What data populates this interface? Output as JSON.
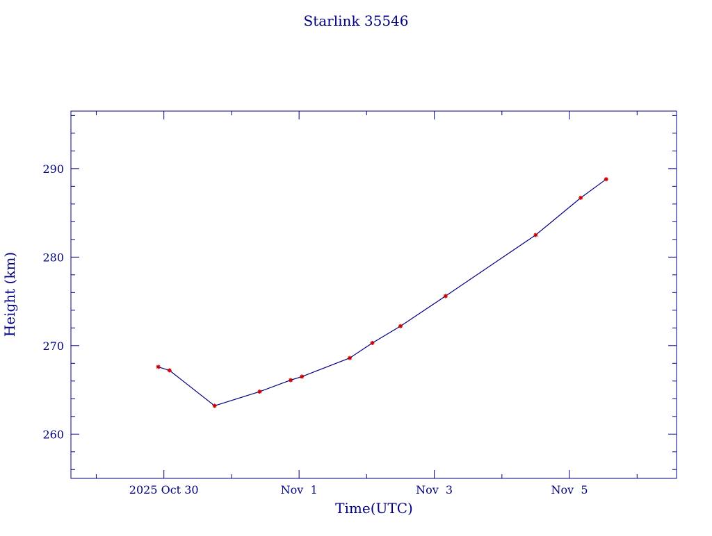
{
  "chart_data": {
    "type": "line",
    "title": "Starlink 35546",
    "xlabel": "Time(UTC)",
    "ylabel": "Height (km)",
    "x_unit": "date",
    "xlim": [
      "2025-10-28T15:00:00",
      "2025-11-06T14:00:00"
    ],
    "ylim": [
      255.0,
      296.5
    ],
    "x_major_ticks": [
      {
        "date": "2025-10-30T00:00:00",
        "label": "2025 Oct 30"
      },
      {
        "date": "2025-11-01T00:00:00",
        "label": "Nov  1"
      },
      {
        "date": "2025-11-03T00:00:00",
        "label": "Nov  3"
      },
      {
        "date": "2025-11-05T00:00:00",
        "label": "Nov  5"
      }
    ],
    "x_minor_ticks": [
      "2025-10-29T00:00:00",
      "2025-10-31T00:00:00",
      "2025-11-02T00:00:00",
      "2025-11-04T00:00:00",
      "2025-11-06T00:00:00"
    ],
    "y_major_ticks": [
      260,
      270,
      280,
      290
    ],
    "y_tick_labels": [
      "260",
      "270",
      "280",
      "290"
    ],
    "y_minor_step": 2,
    "grid": false,
    "line_color": "#000080",
    "marker_color": "#cc0000",
    "axis_color": "#000080",
    "series": [
      {
        "x": [
          "2025-10-29T22:00:00",
          "2025-10-30T02:00:00",
          "2025-10-30T18:00:00",
          "2025-10-31T10:00:00",
          "2025-10-31T21:00:00",
          "2025-11-01T01:00:00",
          "2025-11-01T18:00:00",
          "2025-11-02T02:00:00",
          "2025-11-02T12:00:00",
          "2025-11-03T04:00:00",
          "2025-11-04T12:00:00",
          "2025-11-05T04:00:00",
          "2025-11-05T13:00:00"
        ],
        "y": [
          267.6,
          267.2,
          263.2,
          264.8,
          266.1,
          266.5,
          268.6,
          270.3,
          272.2,
          275.6,
          282.5,
          286.7,
          288.8
        ]
      }
    ]
  }
}
